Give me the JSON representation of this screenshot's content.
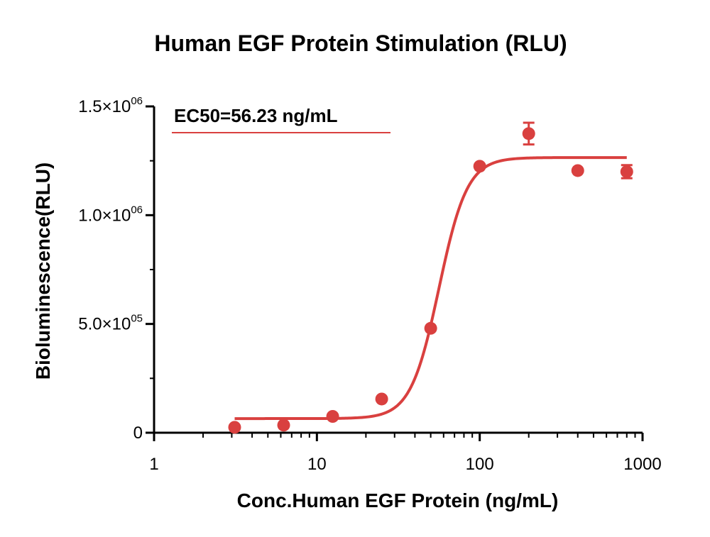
{
  "chart_data": {
    "type": "scatter",
    "title": "Human EGF Protein Stimulation (RLU)",
    "xlabel": "Conc.Human EGF Protein (ng/mL)",
    "ylabel": "Bioluminescence(RLU)",
    "x_scale": "log",
    "xlim": [
      1,
      1000
    ],
    "ylim": [
      0,
      1500000
    ],
    "x_ticks": [
      1,
      10,
      100,
      1000
    ],
    "x_tick_labels": [
      "1",
      "10",
      "100",
      "1000"
    ],
    "y_ticks": [
      0,
      500000,
      1000000,
      1500000
    ],
    "y_tick_labels": [
      {
        "base": "0",
        "exp": ""
      },
      {
        "base": "5.0×10",
        "exp": "05"
      },
      {
        "base": "1.0×10",
        "exp": "06"
      },
      {
        "base": "1.5×10",
        "exp": "06"
      }
    ],
    "annotation": "EC50=56.23 ng/mL",
    "color": "#d9403f",
    "points": [
      {
        "x": 3.125,
        "y": 25000,
        "err": 0
      },
      {
        "x": 6.25,
        "y": 35000,
        "err": 0
      },
      {
        "x": 12.5,
        "y": 75000,
        "err": 0
      },
      {
        "x": 25,
        "y": 155000,
        "err": 0
      },
      {
        "x": 50,
        "y": 480000,
        "err": 0
      },
      {
        "x": 100,
        "y": 1225000,
        "err": 0
      },
      {
        "x": 200,
        "y": 1375000,
        "err": 50000
      },
      {
        "x": 400,
        "y": 1205000,
        "err": 0
      },
      {
        "x": 800,
        "y": 1200000,
        "err": 30000
      }
    ],
    "fit": {
      "model": "4PL",
      "bottom": 65000,
      "top": 1265000,
      "ec50": 56.23,
      "hill": 5,
      "x_range": [
        3.125,
        800
      ]
    },
    "grid": false,
    "legend": "none"
  }
}
